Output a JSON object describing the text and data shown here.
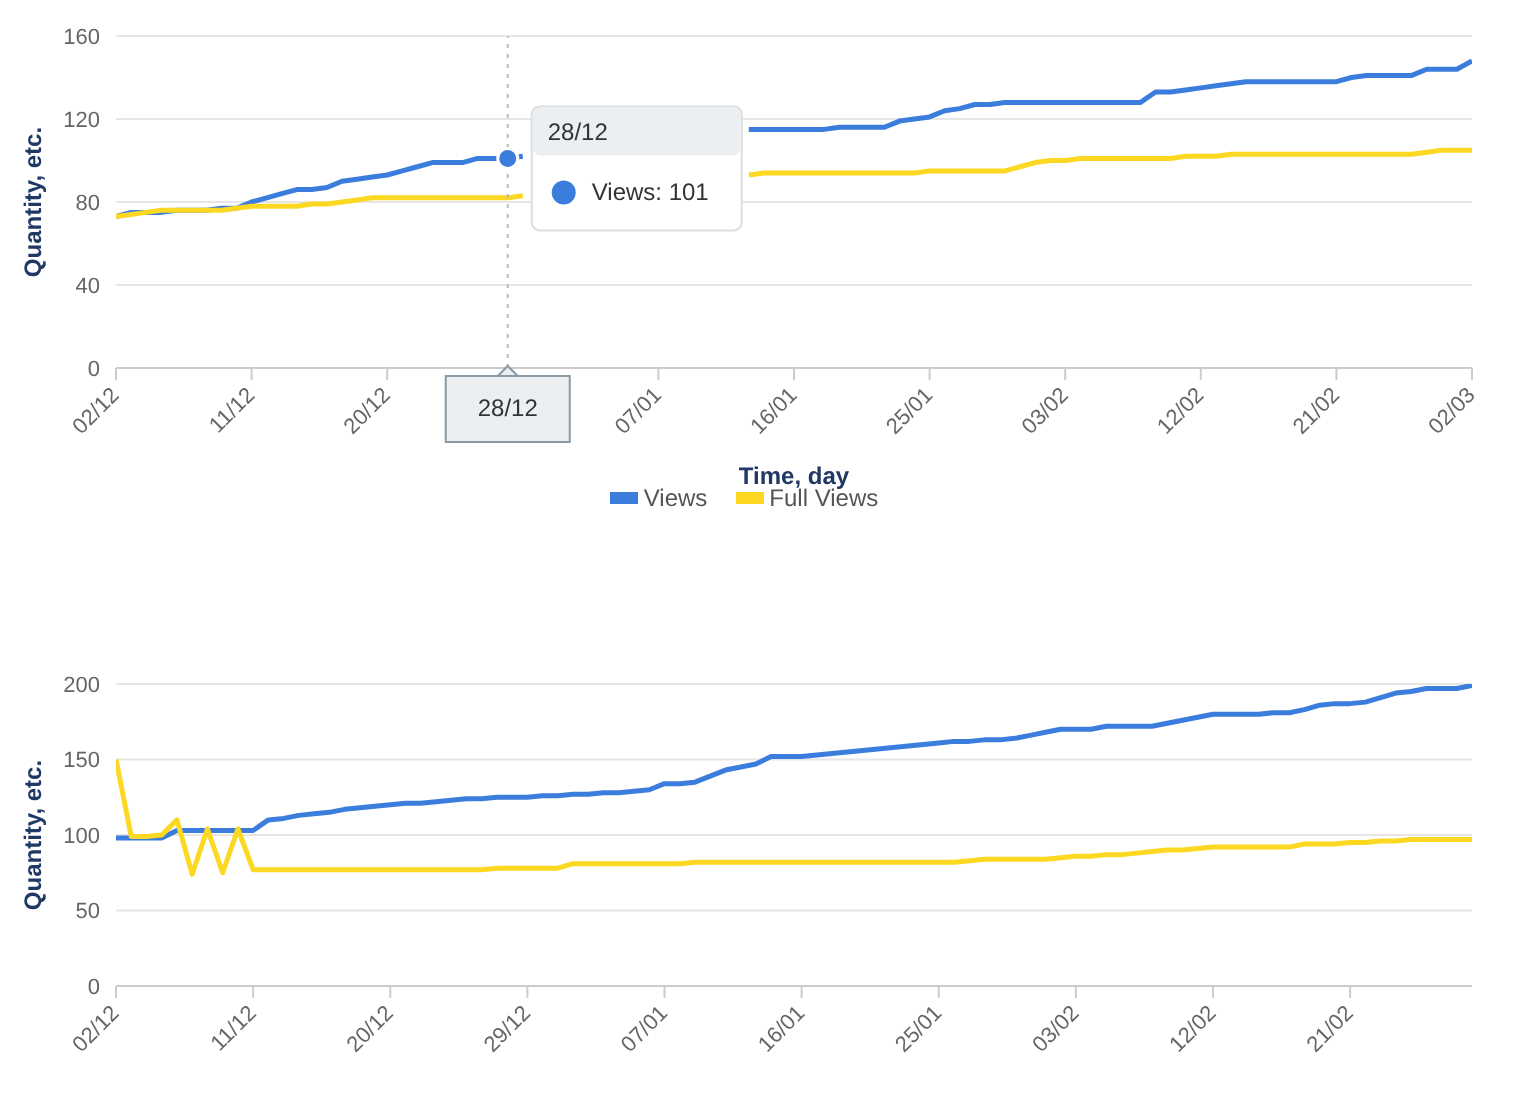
{
  "chart_data": [
    {
      "type": "line",
      "xlabel": "Time, day",
      "ylabel": "Quantity, etc.",
      "ylim": [
        0,
        160
      ],
      "yticks": [
        0,
        40,
        80,
        120,
        160
      ],
      "categories": [
        "02/12",
        null,
        null,
        null,
        null,
        null,
        null,
        null,
        null,
        "11/12",
        null,
        null,
        null,
        null,
        null,
        null,
        null,
        null,
        "20/12",
        null,
        null,
        null,
        null,
        null,
        null,
        null,
        "28/12",
        null,
        null,
        null,
        null,
        null,
        null,
        null,
        null,
        null,
        "07/01",
        null,
        null,
        null,
        null,
        null,
        null,
        null,
        null,
        "16/01",
        null,
        null,
        null,
        null,
        null,
        null,
        null,
        null,
        "25/01",
        null,
        null,
        null,
        null,
        null,
        null,
        null,
        null,
        "03/02",
        null,
        null,
        null,
        null,
        null,
        null,
        null,
        null,
        "12/02",
        null,
        null,
        null,
        null,
        null,
        null,
        null,
        null,
        "21/02",
        null,
        null,
        null,
        null,
        null,
        null,
        null,
        null,
        "02/03"
      ],
      "grid": "y",
      "legend": "bottom",
      "marker": "none",
      "line_style": "solid",
      "series": [
        {
          "name": "Views",
          "color": "#3b7ddd",
          "values": [
            73,
            75,
            75,
            75,
            76,
            76,
            76,
            77,
            77,
            80,
            82,
            84,
            86,
            86,
            87,
            90,
            91,
            92,
            93,
            95,
            97,
            99,
            99,
            99,
            101,
            101,
            101,
            102,
            null,
            null,
            null,
            null,
            null,
            null,
            null,
            null,
            null,
            null,
            null,
            null,
            null,
            null,
            115,
            115,
            115,
            115,
            115,
            115,
            116,
            116,
            116,
            116,
            119,
            120,
            121,
            124,
            125,
            127,
            127,
            128,
            128,
            128,
            128,
            128,
            128,
            128,
            128,
            128,
            128,
            133,
            133,
            134,
            135,
            136,
            137,
            138,
            138,
            138,
            138,
            138,
            138,
            138,
            140,
            141,
            141,
            141,
            141,
            144,
            144,
            144,
            148
          ]
        },
        {
          "name": "Full Views",
          "color": "#fcd822",
          "values": [
            73,
            74,
            75,
            76,
            76,
            76,
            76,
            76,
            77,
            78,
            78,
            78,
            78,
            79,
            79,
            80,
            81,
            82,
            82,
            82,
            82,
            82,
            82,
            82,
            82,
            82,
            82,
            83,
            null,
            null,
            null,
            null,
            null,
            null,
            null,
            null,
            null,
            null,
            null,
            null,
            null,
            null,
            93,
            94,
            94,
            94,
            94,
            94,
            94,
            94,
            94,
            94,
            94,
            94,
            95,
            95,
            95,
            95,
            95,
            95,
            97,
            99,
            100,
            100,
            101,
            101,
            101,
            101,
            101,
            101,
            101,
            102,
            102,
            102,
            103,
            103,
            103,
            103,
            103,
            103,
            103,
            103,
            103,
            103,
            103,
            103,
            103,
            104,
            105,
            105,
            105
          ]
        }
      ],
      "ref_lines": [
        {
          "axis": "x",
          "value": "28/12",
          "color": "#bbbbbb",
          "line_style": "dotted"
        }
      ],
      "annotations": [
        "Views: 101"
      ]
    },
    {
      "type": "line",
      "ylabel": "Quantity, etc.",
      "ylim": [
        0,
        200
      ],
      "yticks": [
        0,
        50,
        100,
        150,
        200
      ],
      "categories": [
        "02/12",
        null,
        null,
        null,
        null,
        null,
        null,
        null,
        null,
        "11/12",
        null,
        null,
        null,
        null,
        null,
        null,
        null,
        null,
        "20/12",
        null,
        null,
        null,
        null,
        null,
        null,
        null,
        null,
        "29/12",
        null,
        null,
        null,
        null,
        null,
        null,
        null,
        null,
        "07/01",
        null,
        null,
        null,
        null,
        null,
        null,
        null,
        null,
        "16/01",
        null,
        null,
        null,
        null,
        null,
        null,
        null,
        null,
        "25/01",
        null,
        null,
        null,
        null,
        null,
        null,
        null,
        null,
        "03/02",
        null,
        null,
        null,
        null,
        null,
        null,
        null,
        null,
        "12/02",
        null,
        null,
        null,
        null,
        null,
        null,
        null,
        null,
        "21/02",
        null,
        null,
        null,
        null,
        null,
        null,
        null,
        null
      ],
      "grid": "y",
      "marker": "none",
      "line_style": "solid",
      "series": [
        {
          "color": "#3b7ddd",
          "values": [
            98,
            98,
            98,
            98,
            103,
            103,
            103,
            103,
            103,
            103,
            110,
            111,
            113,
            114,
            115,
            117,
            118,
            119,
            120,
            121,
            121,
            122,
            123,
            124,
            124,
            125,
            125,
            125,
            126,
            126,
            127,
            127,
            128,
            128,
            129,
            130,
            134,
            134,
            135,
            139,
            143,
            145,
            147,
            152,
            152,
            152,
            153,
            154,
            155,
            156,
            157,
            158,
            159,
            160,
            161,
            162,
            162,
            163,
            163,
            164,
            166,
            168,
            170,
            170,
            170,
            172,
            172,
            172,
            172,
            174,
            176,
            178,
            180,
            180,
            180,
            180,
            181,
            181,
            183,
            186,
            187,
            187,
            188,
            191,
            194,
            195,
            197,
            197,
            197,
            199
          ]
        },
        {
          "color": "#fcd822",
          "values": [
            150,
            99,
            99,
            100,
            110,
            74,
            104,
            75,
            104,
            77,
            77,
            77,
            77,
            77,
            77,
            77,
            77,
            77,
            77,
            77,
            77,
            77,
            77,
            77,
            77,
            78,
            78,
            78,
            78,
            78,
            81,
            81,
            81,
            81,
            81,
            81,
            81,
            81,
            82,
            82,
            82,
            82,
            82,
            82,
            82,
            82,
            82,
            82,
            82,
            82,
            82,
            82,
            82,
            82,
            82,
            82,
            83,
            84,
            84,
            84,
            84,
            84,
            85,
            86,
            86,
            87,
            87,
            88,
            89,
            90,
            90,
            91,
            92,
            92,
            92,
            92,
            92,
            92,
            94,
            94,
            94,
            95,
            95,
            96,
            96,
            97,
            97,
            97,
            97,
            97
          ]
        }
      ]
    }
  ]
}
